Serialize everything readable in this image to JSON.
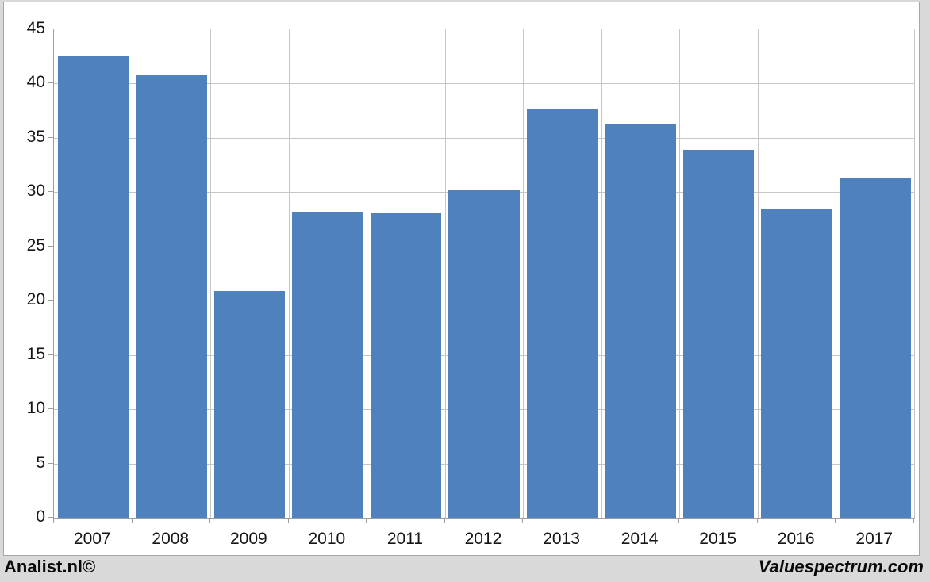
{
  "chart_data": {
    "type": "bar",
    "categories": [
      "2007",
      "2008",
      "2009",
      "2010",
      "2011",
      "2012",
      "2013",
      "2014",
      "2015",
      "2016",
      "2017"
    ],
    "values": [
      42.5,
      40.8,
      20.9,
      28.2,
      28.1,
      30.2,
      37.7,
      36.3,
      33.9,
      28.4,
      31.3
    ],
    "title": "",
    "xlabel": "",
    "ylabel": "",
    "ylim": [
      0,
      45
    ],
    "ytick_step": 5,
    "grid": "horizontal-and-vertical-category-boundaries",
    "legend": "none",
    "colors": {
      "bar": "#4f81bd",
      "gridline": "#c6c6c6",
      "axis": "#9e9e9e",
      "page_background": "#d9d9d9",
      "plot_background": "#ffffff",
      "panel_border": "#a6a6a6",
      "label_text": "#151515"
    }
  },
  "footer": {
    "left_brand": "Analist.nl©",
    "right_brand": "Valuespectrum.com"
  }
}
